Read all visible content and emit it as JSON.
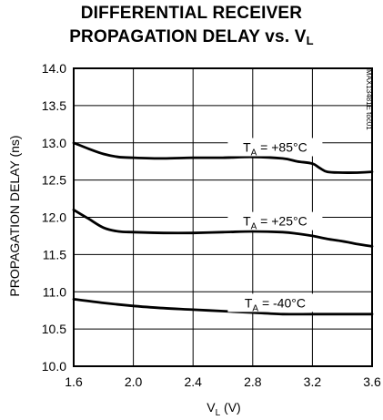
{
  "chart_data": {
    "type": "line",
    "title_line1": "DIFFERENTIAL RECEIVER",
    "title_line2_prefix": "PROPAGATION DELAY vs. V",
    "title_line2_sub": "L",
    "xlabel_main": "V",
    "xlabel_sub": "L",
    "xlabel_unit": " (V)",
    "ylabel": "PROPAGATION DELAY (ns)",
    "xlim": [
      1.6,
      3.6
    ],
    "ylim": [
      10.0,
      14.0
    ],
    "x_ticks": [
      "1.6",
      "2.0",
      "2.4",
      "2.8",
      "3.2",
      "3.6"
    ],
    "y_ticks": [
      "10.0",
      "10.5",
      "11.0",
      "11.5",
      "12.0",
      "12.5",
      "13.0",
      "13.5",
      "14.0"
    ],
    "grid": true,
    "part_id": "MAX13481E toc01",
    "series": [
      {
        "name": "+85°C",
        "label_prefix": "T",
        "label_sub": "A",
        "label_value": " = +85°C",
        "x": [
          1.6,
          1.7,
          1.8,
          1.9,
          2.0,
          2.2,
          2.4,
          2.6,
          2.8,
          3.0,
          3.1,
          3.2,
          3.25,
          3.3,
          3.4,
          3.5,
          3.6
        ],
        "y": [
          13.0,
          12.92,
          12.85,
          12.81,
          12.8,
          12.79,
          12.8,
          12.8,
          12.81,
          12.79,
          12.75,
          12.72,
          12.66,
          12.61,
          12.6,
          12.6,
          12.61
        ]
      },
      {
        "name": "+25°C",
        "label_prefix": "T",
        "label_sub": "A",
        "label_value": " = +25°C",
        "x": [
          1.6,
          1.7,
          1.8,
          1.9,
          2.0,
          2.2,
          2.4,
          2.6,
          2.8,
          3.0,
          3.1,
          3.2,
          3.3,
          3.4,
          3.5,
          3.6
        ],
        "y": [
          12.1,
          11.98,
          11.86,
          11.81,
          11.8,
          11.79,
          11.79,
          11.8,
          11.81,
          11.8,
          11.78,
          11.75,
          11.71,
          11.68,
          11.64,
          11.61
        ]
      },
      {
        "name": "-40°C",
        "label_prefix": "T",
        "label_sub": "A",
        "label_value": " = -40°C",
        "x": [
          1.6,
          1.8,
          2.0,
          2.2,
          2.4,
          2.6,
          2.8,
          3.0,
          3.2,
          3.4,
          3.6
        ],
        "y": [
          10.9,
          10.85,
          10.81,
          10.78,
          10.76,
          10.74,
          10.72,
          10.7,
          10.7,
          10.7,
          10.7
        ]
      }
    ]
  }
}
